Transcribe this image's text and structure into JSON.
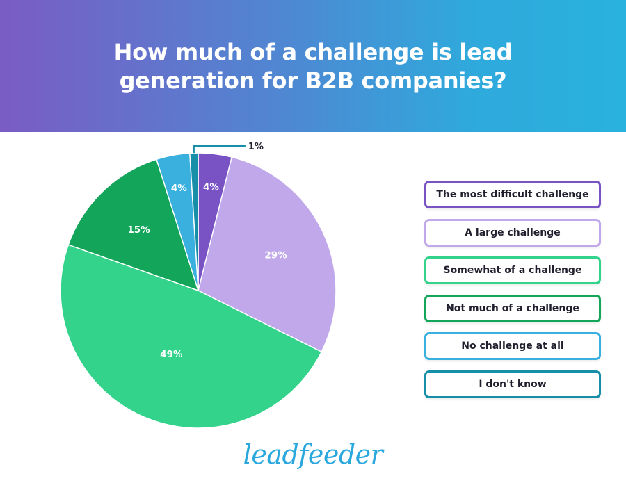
{
  "header": {
    "title_line1": "How much of a challenge is lead",
    "title_line2": "generation for B2B companies?"
  },
  "chart_data": {
    "type": "pie",
    "title": "How much of a challenge is lead generation for B2B companies?",
    "categories": [
      "The most difficult challenge",
      "A large challenge",
      "Somewhat of a challenge",
      "Not much of a challenge",
      "No challenge at all",
      "I don't know"
    ],
    "values": [
      4,
      29,
      49,
      15,
      4,
      1
    ],
    "labels": [
      "4%",
      "29%",
      "49%",
      "15%",
      "4%",
      "1%"
    ],
    "colors": [
      "#7952c4",
      "#c0a8ea",
      "#33d38b",
      "#13a55a",
      "#3ab0de",
      "#178fa8"
    ],
    "legend_placement": "right"
  },
  "logo": {
    "text": "leadfeeder",
    "color": "#2aa8de"
  }
}
